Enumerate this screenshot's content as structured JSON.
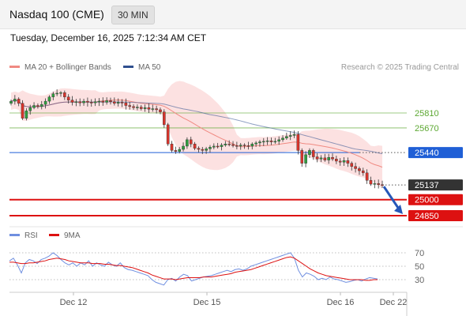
{
  "header": {
    "title": "Nasdaq 100 (CME)",
    "timeframe": "30 MIN"
  },
  "timestamp": "Tuesday, December 16, 2025 7:12:34 AM CET",
  "legend": {
    "main": [
      {
        "label": "MA 20 + Bollinger Bands",
        "color": "#f08a82"
      },
      {
        "label": "MA 50",
        "color": "#30508f"
      }
    ],
    "rsi": [
      {
        "label": "RSI",
        "color": "#6f8fe0"
      },
      {
        "label": "9MA",
        "color": "#dd1111"
      }
    ]
  },
  "credit": "Research © 2025 Trading Central",
  "chart_data": [
    {
      "type": "candlestick",
      "x_ticks": [
        "Dec 12",
        "Dec 15",
        "Dec 16",
        "Dec 22"
      ],
      "price_levels": [
        {
          "value": 25810,
          "label": "25810",
          "kind": "resistance",
          "color": "#5ca832"
        },
        {
          "value": 25670,
          "label": "25670",
          "kind": "resistance",
          "color": "#5ca832"
        },
        {
          "value": 25440,
          "label": "25440",
          "kind": "pivot",
          "color": "#1f5fd6"
        },
        {
          "value": 25137,
          "label": "25137",
          "kind": "last",
          "color": "#333333"
        },
        {
          "value": 25000,
          "label": "25000",
          "kind": "target",
          "color": "#dd1111"
        },
        {
          "value": 24850,
          "label": "24850",
          "kind": "target",
          "color": "#dd1111"
        }
      ],
      "closes": [
        25920,
        25940,
        25900,
        25760,
        25830,
        25860,
        25880,
        25870,
        25890,
        25920,
        25960,
        25990,
        25995,
        26000,
        25960,
        25930,
        25910,
        25915,
        25905,
        25920,
        25910,
        25905,
        25915,
        25920,
        25910,
        25925,
        25915,
        25900,
        25910,
        25905,
        25880,
        25870,
        25860,
        25865,
        25850,
        25860,
        25845,
        25850,
        25840,
        25820,
        25700,
        25520,
        25460,
        25450,
        25470,
        25500,
        25560,
        25520,
        25480,
        25470,
        25460,
        25475,
        25490,
        25500,
        25495,
        25510,
        25520,
        25515,
        25505,
        25500,
        25510,
        25505,
        25500,
        25520,
        25530,
        25540,
        25545,
        25550,
        25540,
        25545,
        25560,
        25575,
        25590,
        25600,
        25610,
        25460,
        25340,
        25420,
        25460,
        25400,
        25380,
        25390,
        25370,
        25395,
        25380,
        25360,
        25350,
        25365,
        25340,
        25310,
        25290,
        25270,
        25250,
        25180,
        25145,
        25150,
        25140,
        25137
      ],
      "arrow_target": 24850
    },
    {
      "type": "line",
      "title": "RSI",
      "y_ticks": [
        70,
        50,
        30
      ],
      "ylim": [
        20,
        80
      ],
      "series": [
        {
          "name": "RSI",
          "values": [
            58,
            62,
            52,
            40,
            55,
            60,
            58,
            54,
            60,
            62,
            65,
            70,
            66,
            60,
            55,
            52,
            55,
            50,
            55,
            52,
            58,
            50,
            55,
            52,
            50,
            56,
            52,
            50,
            55,
            48,
            45,
            44,
            42,
            40,
            38,
            36,
            30,
            26,
            24,
            22,
            30,
            32,
            28,
            34,
            38,
            36,
            28,
            30,
            32,
            34,
            35,
            36,
            38,
            40,
            42,
            44,
            42,
            45,
            46,
            44,
            46,
            50,
            52,
            54,
            56,
            58,
            60,
            62,
            64,
            66,
            68,
            70,
            62,
            44,
            34,
            40,
            38,
            35,
            30,
            32,
            30,
            34,
            31,
            30,
            28,
            26,
            27,
            29,
            30,
            28,
            31,
            33,
            32,
            31
          ]
        },
        {
          "name": "9MA",
          "values": [
            56,
            56,
            55,
            54,
            54,
            55,
            55,
            56,
            57,
            58,
            60,
            61,
            62,
            61,
            60,
            58,
            57,
            56,
            55,
            55,
            55,
            54,
            54,
            54,
            53,
            53,
            52,
            51,
            51,
            50,
            49,
            48,
            46,
            44,
            42,
            40,
            37,
            35,
            33,
            31,
            31,
            31,
            30,
            31,
            32,
            33,
            33,
            33,
            33,
            34,
            34,
            34,
            35,
            36,
            37,
            38,
            39,
            41,
            42,
            43,
            44,
            45,
            47,
            49,
            51,
            53,
            55,
            57,
            59,
            61,
            63,
            64,
            62,
            58,
            54,
            50,
            46,
            43,
            40,
            38,
            36,
            35,
            34,
            33,
            32,
            31,
            30,
            30,
            30,
            30,
            29,
            29,
            30,
            30
          ]
        }
      ]
    }
  ]
}
